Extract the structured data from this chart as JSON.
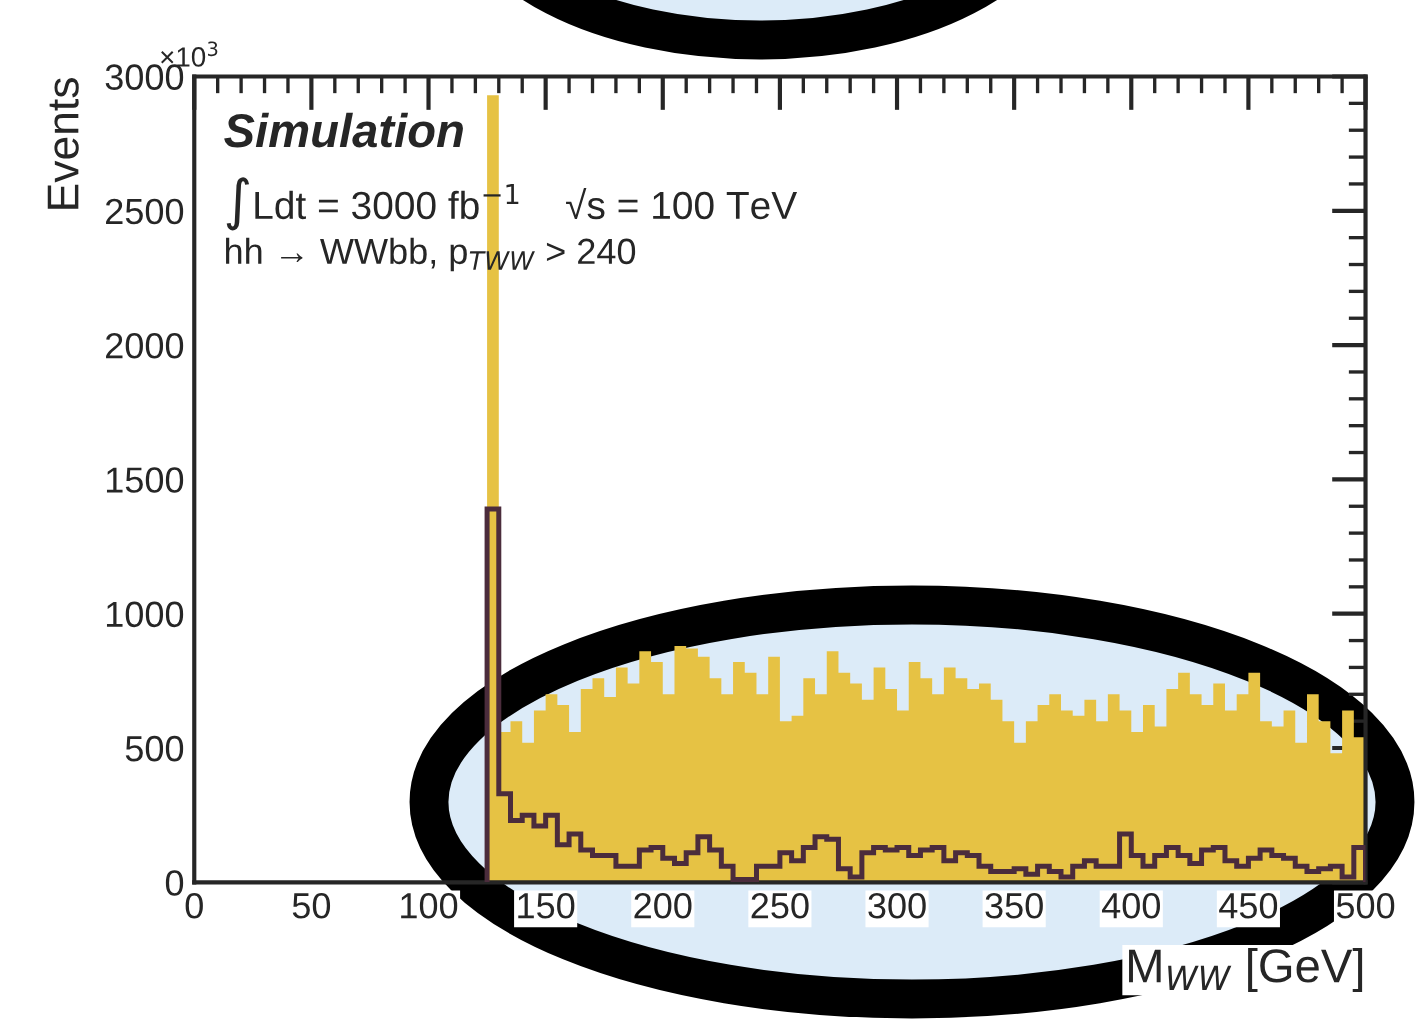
{
  "chart_data": {
    "type": "histogram",
    "xlabel": "M$_{WW}$ [GeV]",
    "ylabel": "Events",
    "annotations": [
      "×10$^{3}$",
      "Simulation",
      "∫Ldt = 3000 fb$^{−1}$    √s = 100 TeV",
      "hh → WWbb, p$_{TWW}$ > 240"
    ],
    "bins": [
      125,
      130,
      135,
      140,
      145,
      150,
      155,
      160,
      165,
      170,
      175,
      180,
      185,
      190,
      195,
      200,
      205,
      210,
      215,
      220,
      225,
      230,
      235,
      240,
      245,
      250,
      255,
      260,
      265,
      270,
      275,
      280,
      285,
      290,
      295,
      300,
      305,
      310,
      315,
      320,
      325,
      330,
      335,
      340,
      345,
      350,
      355,
      360,
      365,
      370,
      375,
      380,
      385,
      390,
      395,
      400,
      405,
      410,
      415,
      420,
      425,
      430,
      435,
      440,
      445,
      450,
      455,
      460,
      465,
      470,
      475,
      480,
      485,
      490,
      495,
      500
    ],
    "series": [
      {
        "color": "#e6c244",
        "values": [
          2930,
          560,
          600,
          520,
          640,
          700,
          660,
          560,
          720,
          760,
          690,
          800,
          740,
          860,
          820,
          700,
          880,
          870,
          840,
          760,
          700,
          820,
          780,
          700,
          840,
          600,
          620,
          760,
          700,
          860,
          780,
          740,
          680,
          800,
          720,
          640,
          820,
          760,
          700,
          800,
          760,
          720,
          740,
          680,
          600,
          520,
          600,
          660,
          700,
          640,
          620,
          680,
          600,
          700,
          640,
          560,
          660,
          580,
          720,
          780,
          700,
          660,
          740,
          640,
          700,
          780,
          600,
          580,
          640,
          520,
          700,
          600,
          480,
          640,
          540
        ]
      },
      {
        "color": "#4b2c3c",
        "values": [
          1390,
          330,
          230,
          250,
          210,
          250,
          140,
          180,
          120,
          100,
          100,
          60,
          60,
          120,
          130,
          90,
          70,
          110,
          170,
          120,
          60,
          10,
          10,
          60,
          60,
          110,
          80,
          130,
          170,
          160,
          50,
          20,
          110,
          130,
          120,
          130,
          100,
          120,
          130,
          80,
          110,
          100,
          60,
          40,
          40,
          50,
          30,
          60,
          40,
          20,
          60,
          80,
          60,
          60,
          180,
          100,
          60,
          100,
          130,
          100,
          70,
          120,
          130,
          80,
          60,
          90,
          120,
          100,
          90,
          60,
          40,
          50,
          60,
          20,
          130
        ]
      }
    ],
    "xlim": [
      0,
      500
    ],
    "xticks": [
      0,
      50,
      100,
      150,
      200,
      250,
      300,
      350,
      400,
      450,
      500
    ],
    "ylim": [
      0,
      3000
    ],
    "yticks": [
      0,
      500,
      1000,
      1500,
      2000,
      2500,
      3000
    ],
    "grid": false,
    "legend": false
  }
}
